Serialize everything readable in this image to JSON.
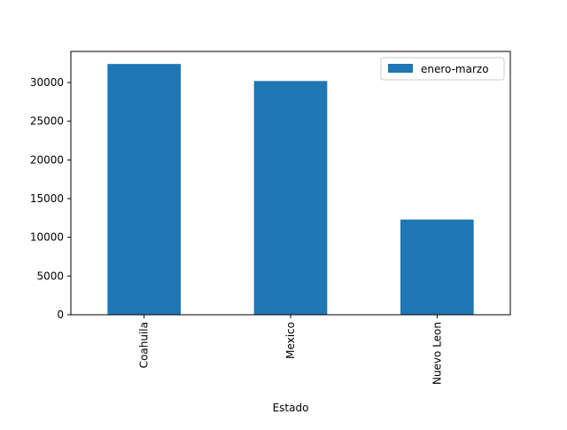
{
  "chart_data": {
    "type": "bar",
    "title": "",
    "xlabel": "Estado",
    "ylabel": "",
    "categories": [
      "Coahuila",
      "Mexico",
      "Nuevo Leon"
    ],
    "series": [
      {
        "name": "enero-marzo",
        "values": [
          32400,
          30200,
          12300
        ],
        "color": "#1f77b4"
      }
    ],
    "ylim": [
      0,
      34020
    ],
    "yticks": [
      0,
      5000,
      10000,
      15000,
      20000,
      25000,
      30000
    ],
    "ytick_labels": [
      "0",
      "5000",
      "10000",
      "15000",
      "20000",
      "25000",
      "30000"
    ],
    "grid": false,
    "legend_position": "top-right"
  }
}
